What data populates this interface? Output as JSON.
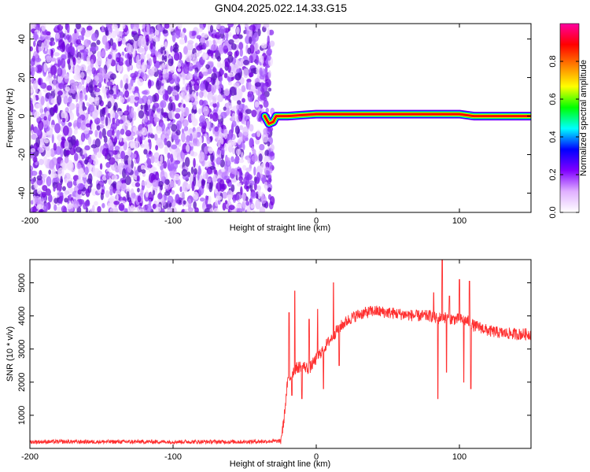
{
  "title": "GN04.2025.022.14.33.G15",
  "chart_data": [
    {
      "type": "heatmap",
      "xlabel": "Height of straight line (km)",
      "ylabel": "Frequency (Hz)",
      "xlim": [
        -200,
        150
      ],
      "ylim": [
        -50,
        48
      ],
      "xticks": [
        -200,
        -100,
        0,
        100
      ],
      "yticks": [
        -40,
        -20,
        0,
        20,
        40
      ],
      "noise_region": {
        "x_start": -200,
        "x_end": -35
      },
      "signal_track": {
        "x_start": -36,
        "x_end": 150,
        "frequency_points": [
          {
            "x": -36,
            "y": 0
          },
          {
            "x": -33,
            "y": -4
          },
          {
            "x": -30,
            "y": -3
          },
          {
            "x": -28,
            "y": 0
          },
          {
            "x": -20,
            "y": 0
          },
          {
            "x": 0,
            "y": 1
          },
          {
            "x": 50,
            "y": 1
          },
          {
            "x": 100,
            "y": 1
          },
          {
            "x": 110,
            "y": 0
          },
          {
            "x": 150,
            "y": 0
          }
        ]
      },
      "colorbar": {
        "label": "Normalized spectral amplitude",
        "range": [
          0,
          1
        ],
        "ticks": [
          0.0,
          0.2,
          0.4,
          0.6,
          0.8
        ],
        "tick_labels": [
          "0.0",
          "0.2",
          "0.4",
          "0.6",
          "0.8"
        ],
        "colors": [
          "#ffffff",
          "#e0b0ff",
          "#8000ff",
          "#0000ff",
          "#00ffff",
          "#00ff00",
          "#ffff00",
          "#ff8000",
          "#ff0000",
          "#ff00a0"
        ]
      }
    },
    {
      "type": "line",
      "xlabel": "Height of straight line (km)",
      "ylabel": "SNR (10 * v/v)",
      "xlim": [
        -200,
        150
      ],
      "ylim": [
        0,
        5700
      ],
      "xticks": [
        -200,
        -100,
        0,
        100
      ],
      "yticks": [
        1000,
        2000,
        3000,
        4000,
        5000
      ],
      "color": "#ff3030",
      "series": [
        {
          "x": [
            -200,
            -150,
            -100,
            -50,
            -25,
            -23,
            -20,
            -15,
            -10,
            -5,
            0,
            5,
            10,
            15,
            20,
            25,
            30,
            40,
            50,
            60,
            70,
            80,
            85,
            88,
            90,
            95,
            100,
            105,
            108,
            110,
            115,
            120,
            130,
            140,
            150
          ],
          "values": [
            200,
            200,
            200,
            200,
            220,
            700,
            2000,
            2400,
            2500,
            2400,
            2700,
            3000,
            3300,
            3600,
            3800,
            3950,
            4050,
            4150,
            4100,
            4050,
            4000,
            4000,
            3900,
            4000,
            3950,
            3900,
            3900,
            3850,
            3800,
            3700,
            3650,
            3550,
            3480,
            3450,
            3450
          ]
        }
      ],
      "spikes": [
        {
          "x": -19,
          "y": 4100
        },
        {
          "x": -17,
          "y": 1600
        },
        {
          "x": -15,
          "y": 4750
        },
        {
          "x": -10,
          "y": 1500
        },
        {
          "x": -5,
          "y": 3900
        },
        {
          "x": 1,
          "y": 4200
        },
        {
          "x": 5,
          "y": 1800
        },
        {
          "x": 12,
          "y": 5000
        },
        {
          "x": 16,
          "y": 2500
        },
        {
          "x": 82,
          "y": 4700
        },
        {
          "x": 85,
          "y": 1500
        },
        {
          "x": 88,
          "y": 5700
        },
        {
          "x": 91,
          "y": 2300
        },
        {
          "x": 93,
          "y": 4600
        },
        {
          "x": 100,
          "y": 5100
        },
        {
          "x": 103,
          "y": 2000
        },
        {
          "x": 107,
          "y": 5050
        },
        {
          "x": 108,
          "y": 1800
        }
      ]
    }
  ]
}
